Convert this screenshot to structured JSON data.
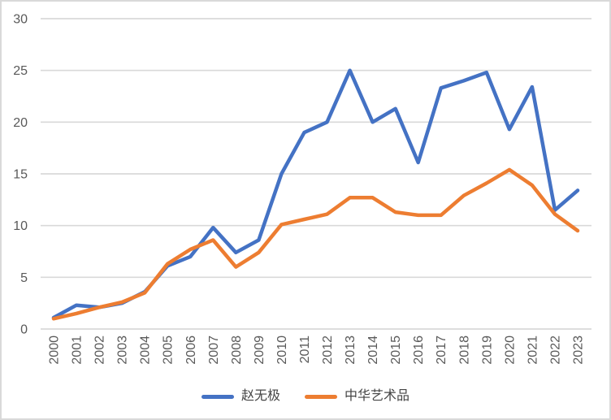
{
  "chart_data": {
    "type": "line",
    "title": "",
    "xlabel": "",
    "ylabel": "",
    "x_labels": [
      "2000",
      "2001",
      "2002",
      "2003",
      "2004",
      "2005",
      "2006",
      "2007",
      "2008",
      "2009",
      "2010",
      "2011",
      "2012",
      "2013",
      "2014",
      "2015",
      "2016",
      "2017",
      "2018",
      "2019",
      "2020",
      "2021",
      "2022",
      "2023"
    ],
    "series": [
      {
        "name": "赵无极",
        "color": "#4472C4",
        "values": [
          1.1,
          2.3,
          2.1,
          2.5,
          3.6,
          6.1,
          7.0,
          9.8,
          7.4,
          8.6,
          15.0,
          19.0,
          20.0,
          25.0,
          20.0,
          21.3,
          16.1,
          23.3,
          24.0,
          24.8,
          19.3,
          23.4,
          11.5,
          13.4
        ]
      },
      {
        "name": "中华艺术品",
        "color": "#ED7D31",
        "values": [
          1.0,
          1.5,
          2.1,
          2.6,
          3.5,
          6.3,
          7.7,
          8.6,
          6.0,
          7.4,
          10.1,
          10.6,
          11.1,
          12.7,
          12.7,
          11.3,
          11.0,
          11.0,
          12.9,
          14.1,
          15.4,
          13.9,
          11.1,
          9.5
        ]
      }
    ],
    "ylim": [
      0,
      30
    ],
    "yticks": [
      0,
      5,
      10,
      15,
      20,
      25,
      30
    ],
    "grid": true,
    "legend_position": "bottom",
    "styles": {
      "gridline_color": "#D9D9D9",
      "axis_text_color": "#595959",
      "legend_text_color": "#444444",
      "background_color": "#FFFFFF",
      "border_color": "#D9D9D9"
    }
  }
}
